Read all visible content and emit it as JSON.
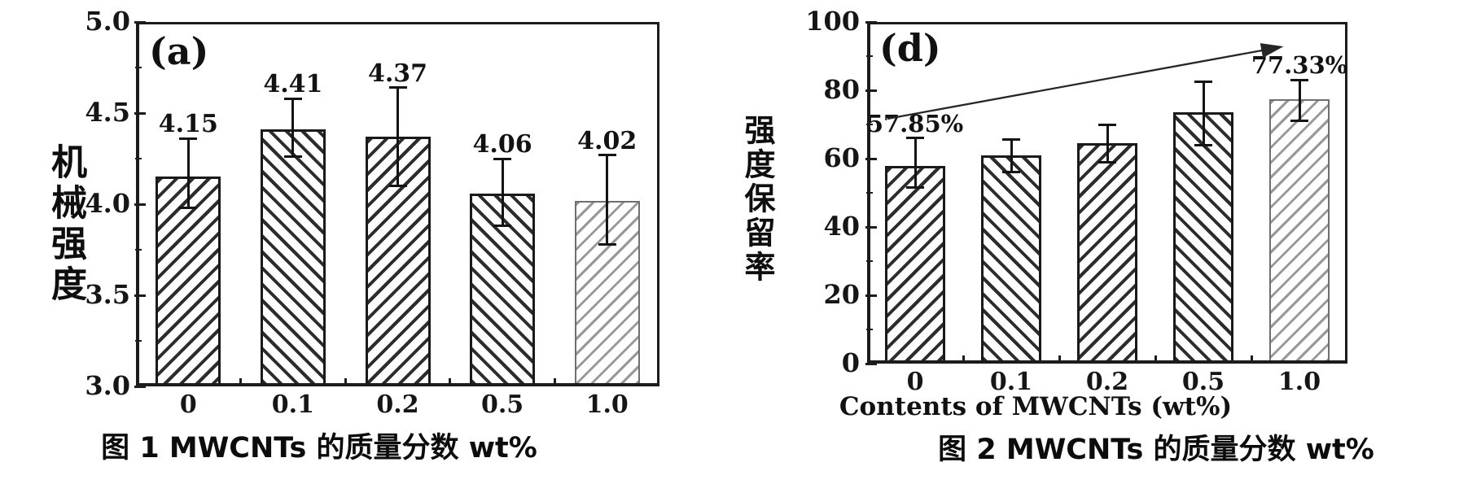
{
  "figure": {
    "background_color": "#ffffff",
    "ink_color": "#1c1c1c",
    "light_bar_color": "#989898",
    "style": "scanned black-and-white hatched bar charts with error bars"
  },
  "chart_data": [
    {
      "type": "bar",
      "panel_label": "(a)",
      "y_axis_title": "机械强度",
      "x_axis_title": "",
      "caption": "图 1 MWCNTs 的质量分数 wt%",
      "categories": [
        "0",
        "0.1",
        "0.2",
        "0.5",
        "1.0"
      ],
      "values": [
        4.15,
        4.41,
        4.37,
        4.06,
        4.02
      ],
      "bar_labels": [
        "4.15",
        "4.41",
        "4.37",
        "4.06",
        "4.02"
      ],
      "errors": [
        [
          3.98,
          4.36
        ],
        [
          4.26,
          4.58
        ],
        [
          4.1,
          4.64
        ],
        [
          3.88,
          4.25
        ],
        [
          3.78,
          4.27
        ]
      ],
      "ylim": [
        3.0,
        5.0
      ],
      "y_ticks": [
        {
          "label": "5.0",
          "value": 5.0
        },
        {
          "label": "4.5",
          "value": 4.5
        },
        {
          "label": "4.0",
          "value": 4.0
        },
        {
          "label": "3.5",
          "value": 3.5
        },
        {
          "label": "3.0",
          "value": 3.0
        }
      ],
      "grid": "off",
      "legend": "none",
      "hatch_pattern": "alternating diagonal, last bar light gray"
    },
    {
      "type": "bar",
      "panel_label": "(d)",
      "y_axis_title": "强度保留率",
      "x_axis_title": "Contents of MWCNTs (wt%)",
      "caption": "图 2 MWCNTs 的质量分数 wt%",
      "categories": [
        "0",
        "0.1",
        "0.2",
        "0.5",
        "1.0"
      ],
      "values": [
        57.85,
        61,
        64.5,
        73.5,
        77.33
      ],
      "bar_labels": [
        "57.85%",
        "",
        "",
        "",
        "77.33%"
      ],
      "errors": [
        [
          51.5,
          66
        ],
        [
          56,
          65.5
        ],
        [
          59,
          70
        ],
        [
          64,
          82.5
        ],
        [
          71,
          83
        ]
      ],
      "ylim": [
        0,
        100
      ],
      "y_ticks": [
        {
          "label": "100",
          "value": 100
        },
        {
          "label": "80",
          "value": 80
        },
        {
          "label": "60",
          "value": 60
        },
        {
          "label": "40",
          "value": 40
        },
        {
          "label": "20",
          "value": 20
        },
        {
          "label": "0",
          "value": 0
        }
      ],
      "grid": "off",
      "legend": "none",
      "annotation": "rising trend arrow from above first bar to above last bar",
      "hatch_pattern": "alternating diagonal, last bar light gray"
    }
  ]
}
